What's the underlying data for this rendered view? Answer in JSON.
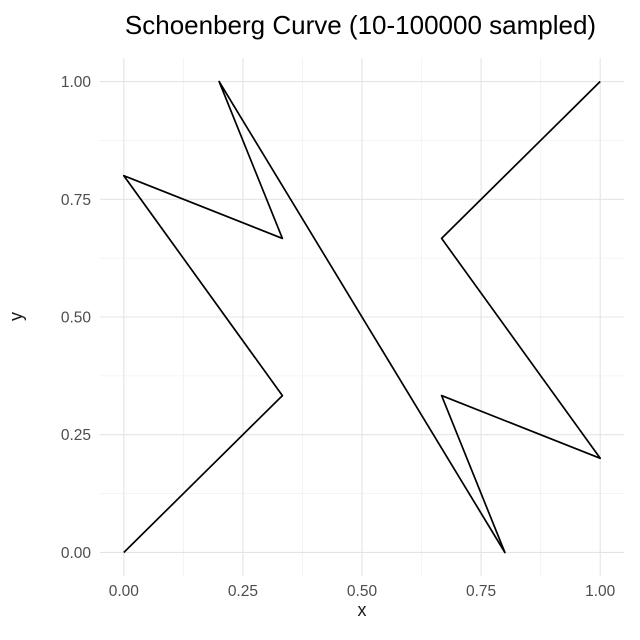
{
  "chart_data": {
    "type": "line",
    "title": "Schoenberg Curve (10-100000 sampled)",
    "xlabel": "x",
    "ylabel": "y",
    "x": [
      0,
      0.333,
      0,
      0.333,
      0.2,
      0.8,
      0.667,
      1,
      0.667,
      1
    ],
    "y": [
      0,
      0.333,
      0.8,
      0.667,
      1,
      0,
      0.333,
      0.2,
      0.667,
      1
    ],
    "xlim": [
      0,
      1
    ],
    "ylim": [
      0,
      1
    ],
    "x_ticks": [
      0,
      0.25,
      0.5,
      0.75,
      1
    ],
    "y_ticks": [
      0,
      0.25,
      0.5,
      0.75,
      1
    ],
    "x_tick_labels": [
      "0.00",
      "0.25",
      "0.50",
      "0.75",
      "1.00"
    ],
    "y_tick_labels": [
      "0.00",
      "0.25",
      "0.50",
      "0.75",
      "1.00"
    ],
    "minor_ticks": [
      0.125,
      0.375,
      0.625,
      0.875
    ],
    "grid": true,
    "legend": "none",
    "line_color": "#000000",
    "major_grid_color": "#e4e4e4",
    "minor_grid_color": "#f1f1f1",
    "background": "#ffffff",
    "tick_label_color": "#4d4d4d",
    "axis_title_color": "#1a1a1a"
  }
}
